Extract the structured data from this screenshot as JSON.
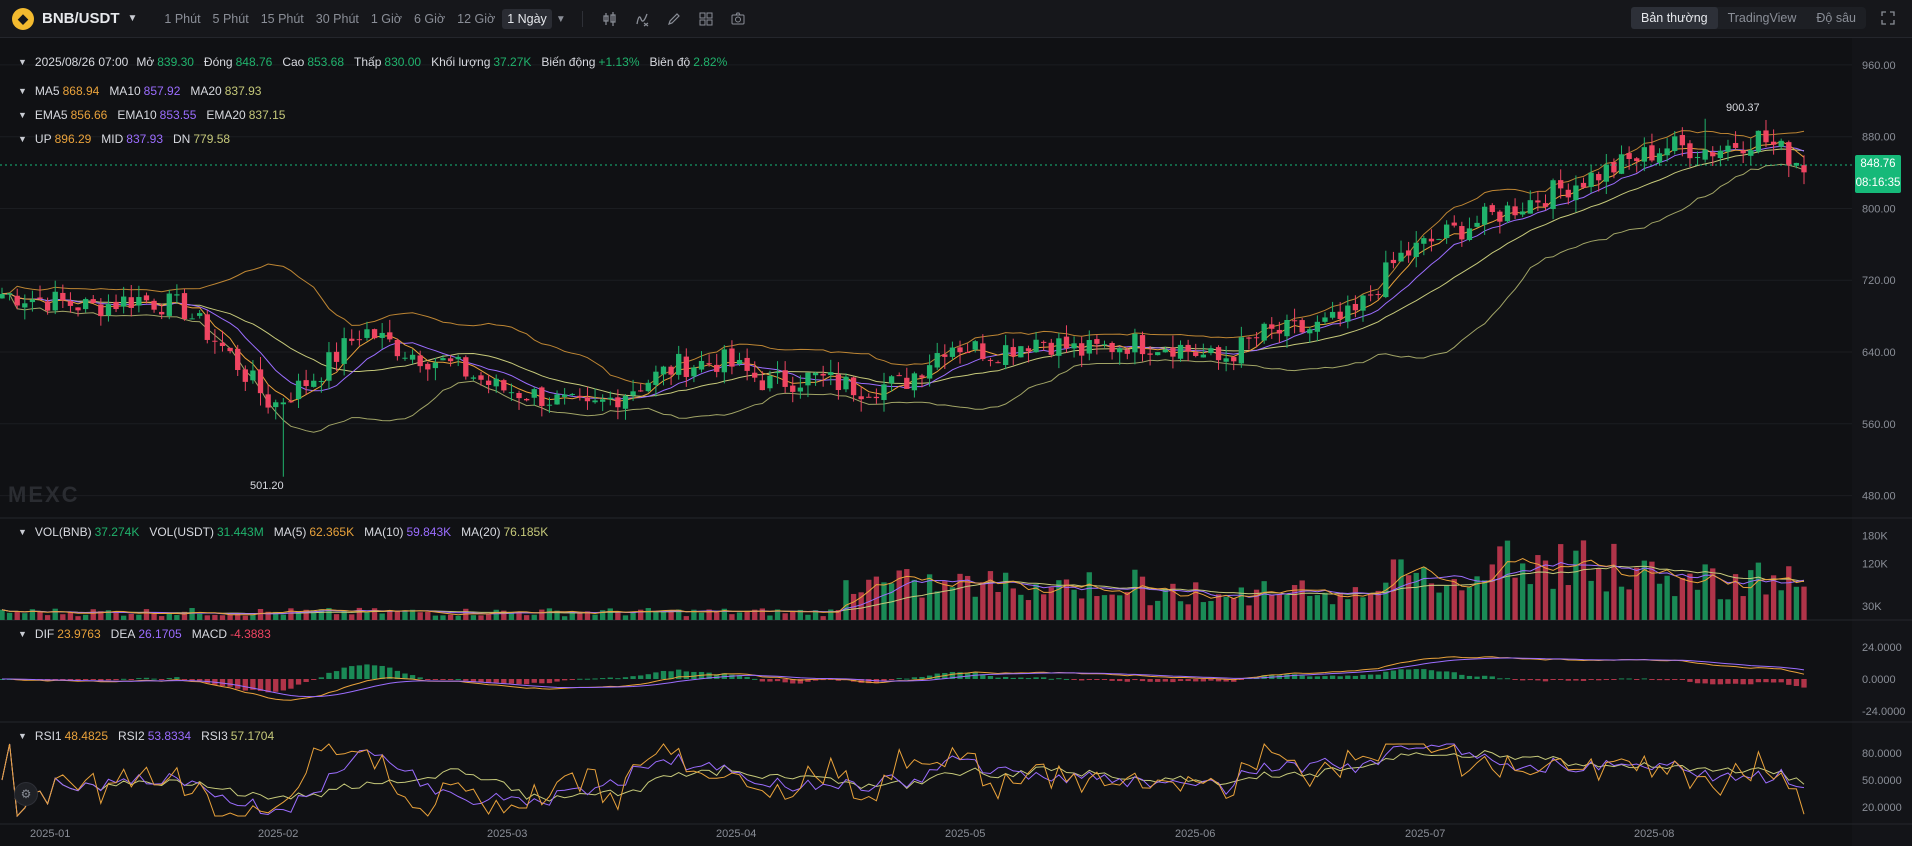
{
  "toolbar": {
    "symbol": "BNB/USDT",
    "intervals": [
      "1 Phút",
      "5 Phút",
      "15 Phút",
      "30 Phút",
      "1 Giờ",
      "6 Giờ",
      "12 Giờ",
      "1 Ngày"
    ],
    "active_interval": "1 Ngày",
    "tools": [
      "candle-type-icon",
      "indicator-icon",
      "draw-icon",
      "layout-icon",
      "camera-icon"
    ],
    "views": [
      "Bản thường",
      "TradingView",
      "Độ sâu"
    ],
    "active_view": "Bản thường"
  },
  "ohlc": {
    "date": "2025/08/26 07:00",
    "open_label": "Mở",
    "open": "839.30",
    "close_label": "Đóng",
    "close": "848.76",
    "high_label": "Cao",
    "high": "853.68",
    "low_label": "Thấp",
    "low": "830.00",
    "volume_label": "Khối lượng",
    "volume": "37.27K",
    "change_label": "Biến động",
    "change": "+1.13%",
    "amplitude_label": "Biên độ",
    "amplitude": "2.82%"
  },
  "ma": {
    "ma5_label": "MA5",
    "ma5": "868.94",
    "ma10_label": "MA10",
    "ma10": "857.92",
    "ma20_label": "MA20",
    "ma20": "837.93"
  },
  "ema": {
    "ema5_label": "EMA5",
    "ema5": "856.66",
    "ema10_label": "EMA10",
    "ema10": "853.55",
    "ema20_label": "EMA20",
    "ema20": "837.15"
  },
  "boll": {
    "up_label": "UP",
    "up": "896.29",
    "mid_label": "MID",
    "mid": "837.93",
    "dn_label": "DN",
    "dn": "779.58"
  },
  "vol": {
    "vol_bnb_label": "VOL(BNB)",
    "vol_bnb": "37.274K",
    "vol_usdt_label": "VOL(USDT)",
    "vol_usdt": "31.443M",
    "ma5_label": "MA(5)",
    "ma5": "62.365K",
    "ma10_label": "MA(10)",
    "ma10": "59.843K",
    "ma20_label": "MA(20)",
    "ma20": "76.185K"
  },
  "macd": {
    "dif_label": "DIF",
    "dif": "23.9763",
    "dea_label": "DEA",
    "dea": "26.1705",
    "macd_label": "MACD",
    "macd": "-4.3883"
  },
  "rsi": {
    "rsi1_label": "RSI1",
    "rsi1": "48.4825",
    "rsi2_label": "RSI2",
    "rsi2": "53.8334",
    "rsi3_label": "RSI3",
    "rsi3": "57.1704"
  },
  "price_tag": {
    "price": "848.76",
    "countdown": "08:16:35"
  },
  "watermark": "MEXC",
  "chart_data": {
    "type": "candlestick",
    "price_axis_ticks": [
      "960.00",
      "880.00",
      "800.00",
      "720.00",
      "640.00",
      "560.00",
      "480.00"
    ],
    "price_axis_values": [
      960,
      880,
      800,
      720,
      640,
      560,
      480
    ],
    "volume_axis_ticks": [
      "180K",
      "120K",
      "30K"
    ],
    "volume_axis_values": [
      180,
      120,
      30
    ],
    "macd_axis_ticks": [
      "24.0000",
      "0.0000",
      "-24.0000"
    ],
    "macd_axis_values": [
      24,
      0,
      -24
    ],
    "rsi_axis_ticks": [
      "80.0000",
      "50.0000",
      "20.0000"
    ],
    "rsi_axis_values": [
      80,
      50,
      20
    ],
    "time_axis": [
      "2025-01",
      "2025-02",
      "2025-03",
      "2025-04",
      "2025-05",
      "2025-06",
      "2025-07",
      "2025-08"
    ],
    "high_annotation": "900.37",
    "low_annotation": "501.20",
    "current_price": 848.76,
    "closes_weekly": [
      705,
      698,
      690,
      700,
      690,
      640,
      580,
      615,
      665,
      640,
      625,
      600,
      590,
      575,
      600,
      625,
      630,
      605,
      612,
      600,
      605,
      650,
      640,
      655,
      640,
      650,
      648,
      630,
      660,
      665,
      680,
      745,
      770,
      790,
      810,
      830,
      850,
      870,
      865,
      880,
      848
    ],
    "colors": {
      "up": "#20b26c",
      "down": "#ef4562",
      "ma5": "#e9a23b",
      "ma10": "#9b6dff",
      "ma20": "#c6c97a"
    }
  }
}
